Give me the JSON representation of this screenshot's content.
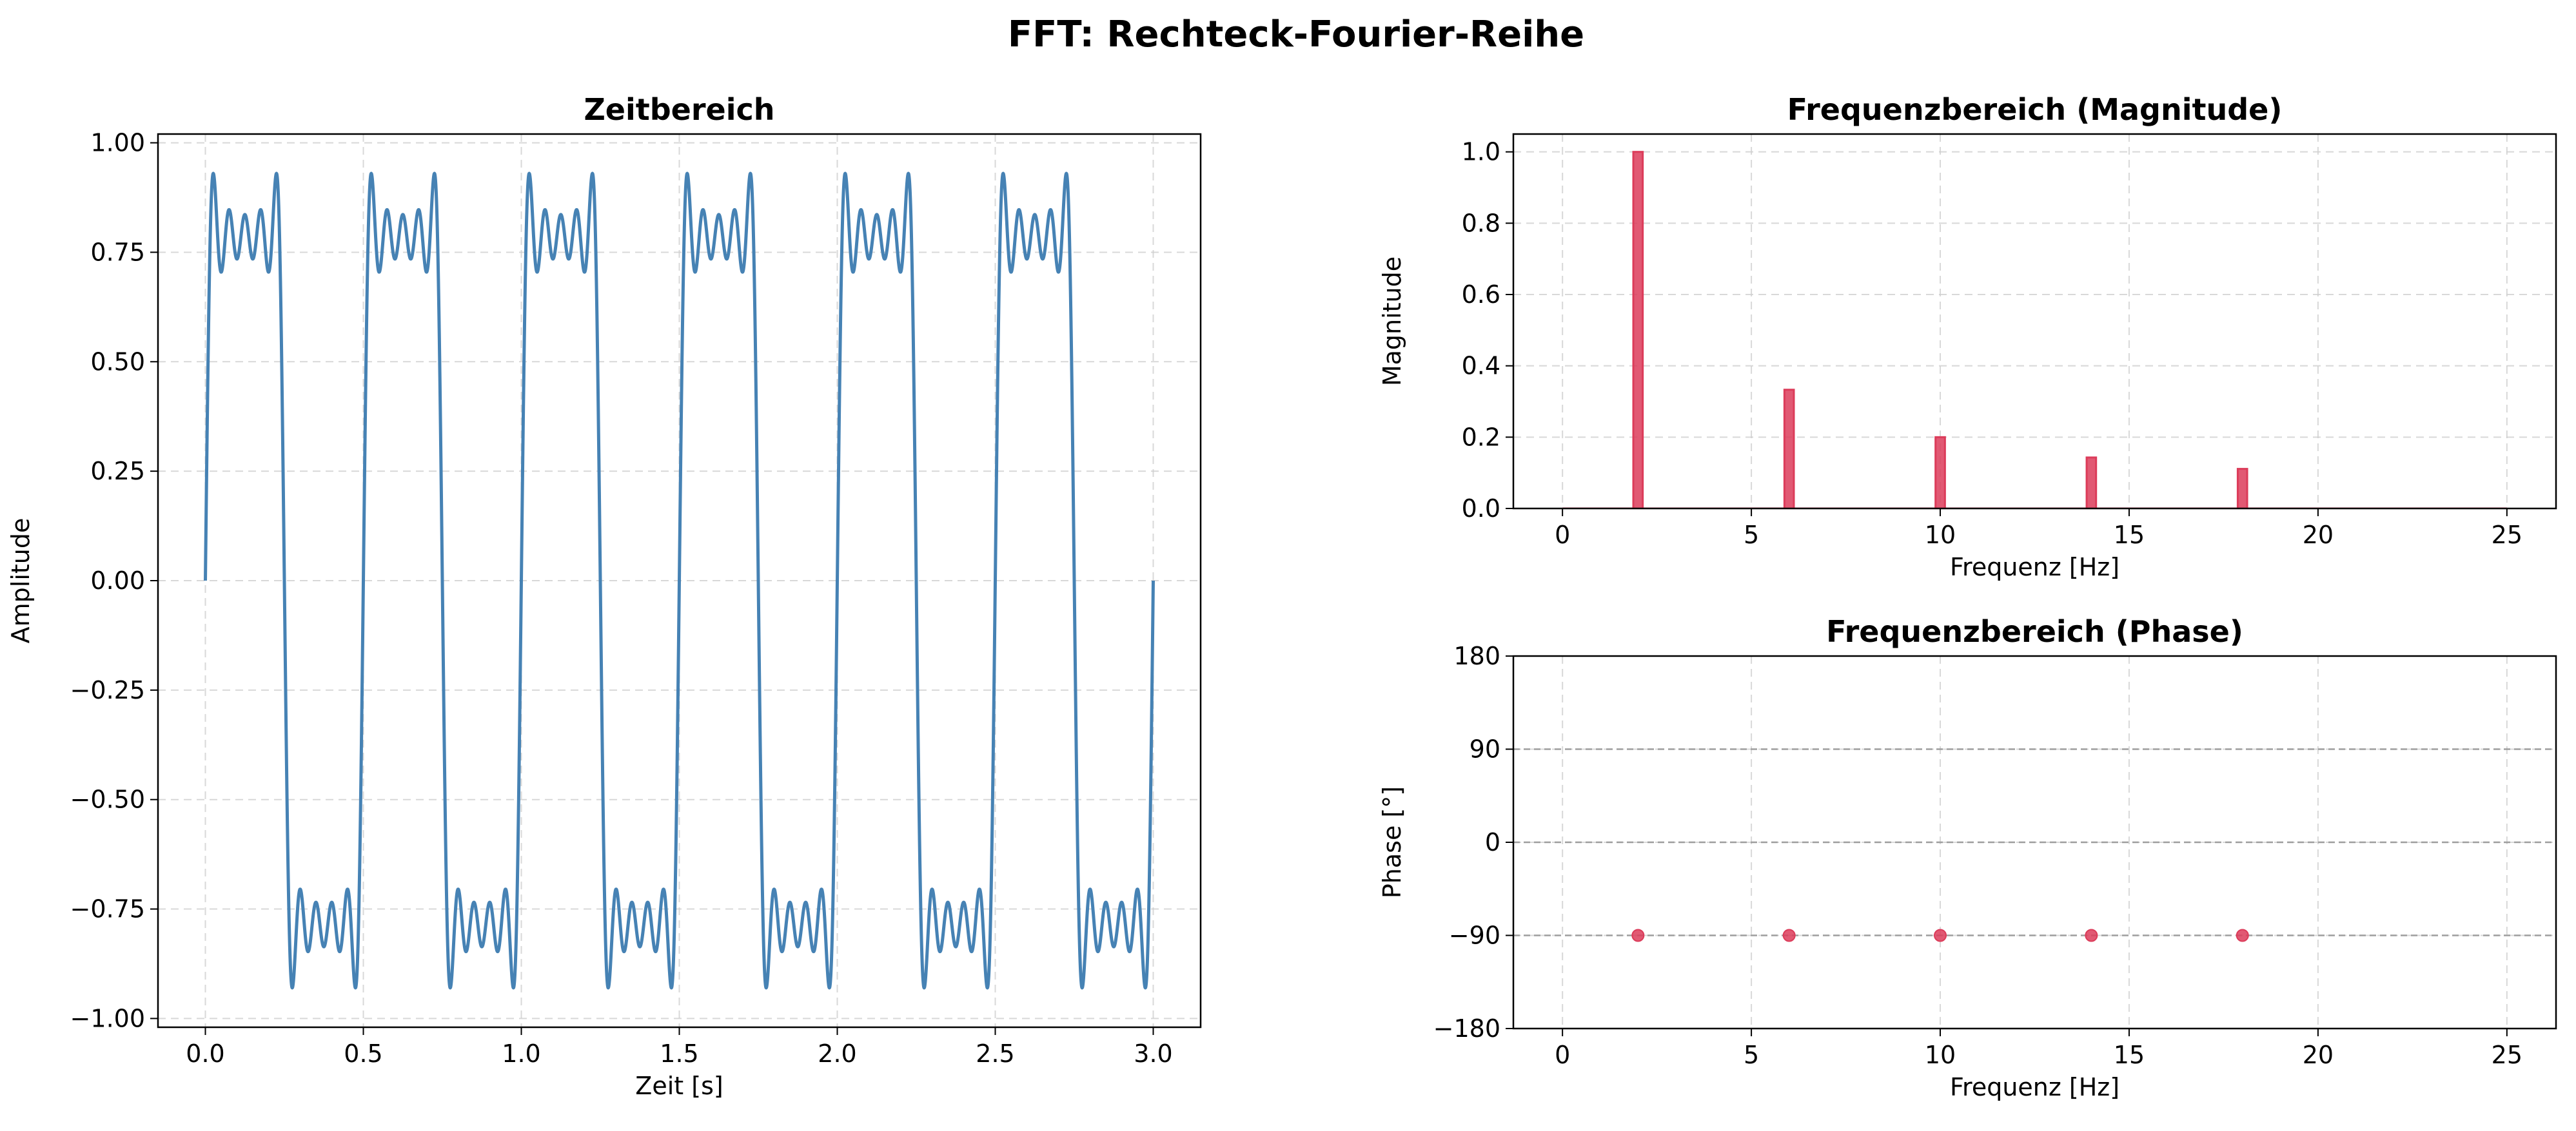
{
  "figure": {
    "suptitle": "FFT: Rechteck-Fourier-Reihe"
  },
  "colors": {
    "signal": "#4682b4",
    "spectrum": "#dc3c5a",
    "grid": "#cfcfcf",
    "refline": "#9e9e9e"
  },
  "chart_data": [
    {
      "type": "line",
      "title": "Zeitbereich",
      "xlabel": "Zeit [s]",
      "ylabel": "Amplitude",
      "xlim": [
        -0.15,
        3.15
      ],
      "ylim": [
        -1.02,
        1.02
      ],
      "xticks": [
        0.0,
        0.5,
        1.0,
        1.5,
        2.0,
        2.5,
        3.0
      ],
      "xtick_labels": [
        "0.0",
        "0.5",
        "1.0",
        "1.5",
        "2.0",
        "2.5",
        "3.0"
      ],
      "yticks": [
        -1.0,
        -0.75,
        -0.5,
        -0.25,
        0.0,
        0.25,
        0.5,
        0.75,
        1.0
      ],
      "ytick_labels": [
        "−1.00",
        "−0.75",
        "−0.50",
        "−0.25",
        "0.00",
        "0.25",
        "0.50",
        "0.75",
        "1.00"
      ],
      "grid": true,
      "series": [
        {
          "x_range": [
            0,
            3
          ],
          "fundamental_hz": 2,
          "harmonics": [
            {
              "freq_hz": 2,
              "amplitude": 1.0
            },
            {
              "freq_hz": 6,
              "amplitude": 0.3333
            },
            {
              "freq_hz": 10,
              "amplitude": 0.2
            },
            {
              "freq_hz": 14,
              "amplitude": 0.1429
            },
            {
              "freq_hz": 18,
              "amplitude": 0.1111
            }
          ],
          "peak_value": 0.93,
          "color": "#4682b4"
        }
      ]
    },
    {
      "type": "bar",
      "title": "Frequenzbereich (Magnitude)",
      "xlabel": "Frequenz [Hz]",
      "ylabel": "Magnitude",
      "xlim": [
        -1.3,
        26.3
      ],
      "ylim": [
        0,
        1.05
      ],
      "xticks": [
        0,
        5,
        10,
        15,
        20,
        25
      ],
      "xtick_labels": [
        "0",
        "5",
        "10",
        "15",
        "20",
        "25"
      ],
      "yticks": [
        0.0,
        0.2,
        0.4,
        0.6,
        0.8,
        1.0
      ],
      "ytick_labels": [
        "0.0",
        "0.2",
        "0.4",
        "0.6",
        "0.8",
        "1.0"
      ],
      "grid": true,
      "x_start": 0,
      "x_end": 25,
      "bar_width_hz": 0.25,
      "values": [
        {
          "x": 2,
          "y": 1.0
        },
        {
          "x": 6,
          "y": 0.333
        },
        {
          "x": 10,
          "y": 0.2
        },
        {
          "x": 14,
          "y": 0.143
        },
        {
          "x": 18,
          "y": 0.111
        }
      ],
      "color": "#dc3c5a"
    },
    {
      "type": "scatter",
      "title": "Frequenzbereich (Phase)",
      "xlabel": "Frequenz [Hz]",
      "ylabel": "Phase [°]",
      "xlim": [
        -1.3,
        26.3
      ],
      "ylim": [
        -180,
        180
      ],
      "xticks": [
        0,
        5,
        10,
        15,
        20,
        25
      ],
      "xtick_labels": [
        "0",
        "5",
        "10",
        "15",
        "20",
        "25"
      ],
      "yticks": [
        -180,
        -90,
        0,
        90,
        180
      ],
      "ytick_labels": [
        "−180",
        "−90",
        "0",
        "90",
        "180"
      ],
      "grid": true,
      "reference_lines": [
        90,
        0,
        -90
      ],
      "values": [
        {
          "x": 2,
          "y": -90
        },
        {
          "x": 6,
          "y": -90
        },
        {
          "x": 10,
          "y": -90
        },
        {
          "x": 14,
          "y": -90
        },
        {
          "x": 18,
          "y": -90
        }
      ],
      "color": "#dc3c5a"
    }
  ]
}
